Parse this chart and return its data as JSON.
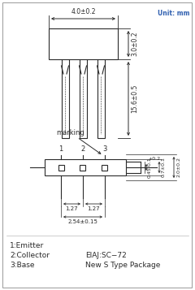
{
  "title": "Unit: mm",
  "background_color": "#ffffff",
  "draw_color": "#2a2a2a",
  "fig_width": 2.4,
  "fig_height": 3.57,
  "labels": {
    "emitter": "1:Emitter",
    "collector": "2:Collector",
    "base": "3:Base",
    "eiaj": "EIAJ:SC−72",
    "package": "New S Type Package",
    "marking": "marking",
    "dim_40": "4.0±0.2",
    "dim_30": "3.0±0.2",
    "dim_156": "15.6±0.5",
    "dim_045": "0.45-0.1",
    "dim_045b": "+0.2",
    "dim_07": "0.7±0.1",
    "dim_20": "2.0±0.2",
    "dim_127a": "1.27",
    "dim_127b": "1.27",
    "dim_254": "2.54±0.15",
    "pin1": "1",
    "pin2": "2",
    "pin3": "3"
  }
}
